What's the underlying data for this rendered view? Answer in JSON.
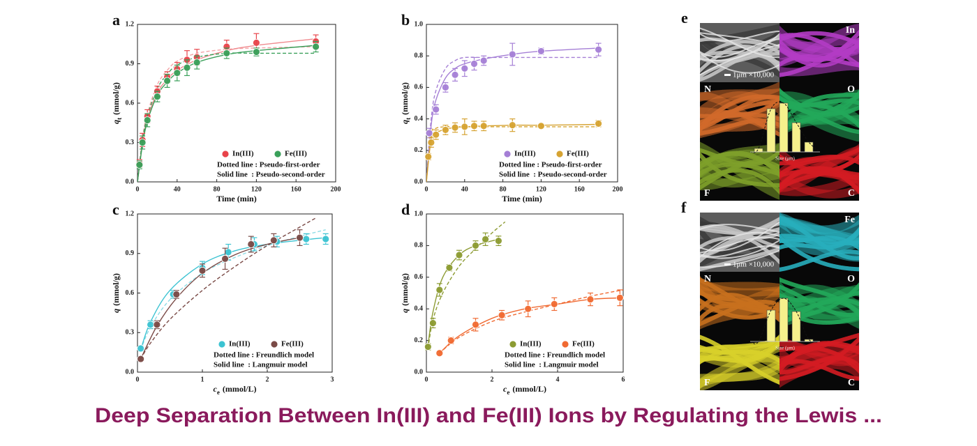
{
  "chart_data": [
    {
      "type": "scatter",
      "panel_label": "a",
      "xlabel": "Time (min)",
      "ylabel": {
        "var": "q",
        "sub": "t",
        "unit": "(mmol/g)"
      },
      "xlim": [
        0,
        200
      ],
      "xticks": [
        0,
        40,
        80,
        120,
        160,
        200
      ],
      "ylim": [
        0,
        1.2
      ],
      "yticks": [
        {
          "value": 0,
          "label": "0.0"
        },
        0.3,
        0.6,
        0.9,
        1.2
      ],
      "legend": "lower right",
      "series": [
        {
          "name": "In(III)",
          "color": "#e8434a",
          "x": [
            2,
            5,
            10,
            20,
            30,
            40,
            50,
            60,
            90,
            120,
            180
          ],
          "values": [
            0.14,
            0.32,
            0.5,
            0.69,
            0.8,
            0.86,
            0.93,
            0.95,
            1.03,
            1.06,
            1.07
          ],
          "errors": [
            0.03,
            0.05,
            0.05,
            0.04,
            0.04,
            0.05,
            0.07,
            0.06,
            0.05,
            0.07,
            0.05
          ]
        },
        {
          "name": "Fe(III)",
          "color": "#3aa05a",
          "x": [
            2,
            5,
            10,
            20,
            30,
            40,
            50,
            60,
            90,
            120,
            180
          ],
          "values": [
            0.13,
            0.3,
            0.47,
            0.65,
            0.77,
            0.83,
            0.87,
            0.91,
            0.98,
            0.99,
            1.03
          ],
          "errors": [
            0.03,
            0.05,
            0.05,
            0.04,
            0.05,
            0.06,
            0.06,
            0.05,
            0.04,
            0.03,
            0.04
          ]
        }
      ],
      "fits": [
        {
          "style": "dashed",
          "color": "#f4a3a6",
          "x": [
            0,
            5,
            10,
            20,
            30,
            40,
            60,
            90,
            120,
            180
          ],
          "values": [
            0,
            0.33,
            0.52,
            0.74,
            0.85,
            0.92,
            0.98,
            1.01,
            1.02,
            1.03
          ]
        },
        {
          "style": "solid",
          "color": "#f08a8e",
          "x": [
            0,
            5,
            10,
            20,
            30,
            40,
            60,
            90,
            120,
            180
          ],
          "values": [
            0,
            0.3,
            0.48,
            0.68,
            0.78,
            0.85,
            0.93,
            1.0,
            1.04,
            1.09
          ]
        },
        {
          "style": "dashed",
          "color": "#3aa05a",
          "x": [
            0,
            5,
            10,
            20,
            30,
            40,
            60,
            90,
            120,
            180
          ],
          "values": [
            0,
            0.31,
            0.5,
            0.71,
            0.82,
            0.89,
            0.95,
            0.98,
            0.98,
            0.98
          ]
        },
        {
          "style": "solid",
          "color": "#3aa05a",
          "x": [
            0,
            5,
            10,
            20,
            30,
            40,
            60,
            90,
            120,
            180
          ],
          "values": [
            0,
            0.28,
            0.46,
            0.66,
            0.76,
            0.83,
            0.91,
            0.97,
            1.0,
            1.04
          ]
        }
      ],
      "notes": [
        "Dotted line : Pseudo-first-order",
        "Solid line  : Pseudo-second-order"
      ]
    },
    {
      "type": "scatter",
      "panel_label": "b",
      "xlabel": "Time (min)",
      "ylabel": {
        "var": "q",
        "sub": "t",
        "unit": "(mmol/g)"
      },
      "xlim": [
        0,
        200
      ],
      "xticks": [
        0,
        40,
        80,
        120,
        160,
        200
      ],
      "ylim": [
        0,
        1.0
      ],
      "yticks": [
        {
          "value": 0,
          "label": "0.0"
        },
        0.2,
        0.4,
        0.6,
        0.8,
        {
          "value": 1.0,
          "label": "1.0"
        }
      ],
      "legend": "lower right",
      "series": [
        {
          "name": "In(III)",
          "color": "#a57fd6",
          "x": [
            3,
            10,
            20,
            30,
            40,
            50,
            60,
            90,
            120,
            180
          ],
          "values": [
            0.31,
            0.46,
            0.6,
            0.68,
            0.72,
            0.75,
            0.77,
            0.81,
            0.83,
            0.84
          ],
          "errors": [
            0.03,
            0.03,
            0.03,
            0.04,
            0.05,
            0.04,
            0.03,
            0.07,
            0.02,
            0.04
          ]
        },
        {
          "name": "Fe(III)",
          "color": "#d6a332",
          "x": [
            2,
            5,
            10,
            20,
            30,
            40,
            50,
            60,
            90,
            120,
            180
          ],
          "values": [
            0.16,
            0.25,
            0.3,
            0.33,
            0.345,
            0.35,
            0.355,
            0.355,
            0.36,
            0.355,
            0.37
          ],
          "errors": [
            0.02,
            0.03,
            0.03,
            0.03,
            0.03,
            0.05,
            0.03,
            0.03,
            0.04,
            0.01,
            0.02
          ]
        }
      ],
      "fits": [
        {
          "style": "dashed",
          "color": "#a57fd6",
          "x": [
            0,
            5,
            10,
            20,
            30,
            40,
            60,
            90,
            120,
            180
          ],
          "values": [
            0,
            0.4,
            0.58,
            0.72,
            0.77,
            0.79,
            0.79,
            0.79,
            0.79,
            0.79
          ]
        },
        {
          "style": "solid",
          "color": "#a57fd6",
          "x": [
            0,
            5,
            10,
            20,
            30,
            40,
            60,
            90,
            120,
            180
          ],
          "values": [
            0,
            0.36,
            0.52,
            0.66,
            0.72,
            0.75,
            0.78,
            0.81,
            0.83,
            0.85
          ]
        },
        {
          "style": "dashed",
          "color": "#d6a332",
          "x": [
            0,
            5,
            10,
            20,
            30,
            40,
            60,
            90,
            120,
            180
          ],
          "values": [
            0,
            0.3,
            0.34,
            0.35,
            0.35,
            0.35,
            0.35,
            0.35,
            0.35,
            0.35
          ]
        },
        {
          "style": "solid",
          "color": "#d6a332",
          "x": [
            0,
            5,
            10,
            20,
            30,
            40,
            60,
            90,
            120,
            180
          ],
          "values": [
            0,
            0.27,
            0.31,
            0.335,
            0.345,
            0.35,
            0.355,
            0.36,
            0.36,
            0.365
          ]
        }
      ],
      "notes": [
        "Dotted line : Pseudo-first-order",
        "Solid line  : Pseudo-second-order"
      ]
    },
    {
      "type": "scatter",
      "panel_label": "c",
      "xlabel": {
        "var": "c",
        "sub": "e",
        "unit": "(mmol/L)"
      },
      "ylabel": {
        "var": "q",
        "unit": "(mmol/g)"
      },
      "xlim": [
        0,
        3
      ],
      "xticks": [
        0,
        1,
        2,
        3
      ],
      "ylim": [
        0,
        1.2
      ],
      "yticks": [
        {
          "value": 0,
          "label": "0.0"
        },
        0.3,
        0.6,
        0.9,
        1.2
      ],
      "legend": "lower right",
      "series": [
        {
          "name": "In(III)",
          "color": "#3cc3d2",
          "x": [
            0.05,
            0.2,
            0.55,
            1.0,
            1.4,
            1.8,
            2.15,
            2.6,
            2.9
          ],
          "values": [
            0.18,
            0.36,
            0.59,
            0.79,
            0.91,
            0.97,
            0.99,
            1.01,
            1.01
          ],
          "errors": [
            0.02,
            0.03,
            0.03,
            0.05,
            0.06,
            0.05,
            0.04,
            0.04,
            0.04
          ]
        },
        {
          "name": "Fe(III)",
          "color": "#7a4a46",
          "x": [
            0.05,
            0.3,
            0.6,
            1.0,
            1.35,
            1.75,
            2.1,
            2.5
          ],
          "values": [
            0.1,
            0.36,
            0.59,
            0.77,
            0.86,
            0.97,
            1.0,
            1.02
          ],
          "errors": [
            0.01,
            0.03,
            0.03,
            0.05,
            0.08,
            0.06,
            0.05,
            0.06
          ]
        }
      ],
      "fits": [
        {
          "style": "dashed",
          "color": "#8fdde6",
          "x": [
            0.05,
            0.2,
            0.5,
            1.0,
            1.5,
            2.0,
            2.5,
            2.9
          ],
          "values": [
            0.17,
            0.34,
            0.55,
            0.75,
            0.87,
            0.96,
            1.03,
            1.08
          ]
        },
        {
          "style": "solid",
          "color": "#3cc3d2",
          "x": [
            0.05,
            0.2,
            0.5,
            1.0,
            1.5,
            2.0,
            2.5,
            2.9
          ],
          "values": [
            0.17,
            0.38,
            0.62,
            0.82,
            0.92,
            0.97,
            1.0,
            1.02
          ]
        },
        {
          "style": "dashed",
          "color": "#7a4a46",
          "x": [
            0.05,
            0.2,
            0.5,
            1.0,
            1.5,
            2.0,
            2.5,
            2.75
          ],
          "values": [
            0.1,
            0.22,
            0.4,
            0.62,
            0.8,
            0.96,
            1.1,
            1.17
          ]
        },
        {
          "style": "solid",
          "color": "#7a4a46",
          "x": [
            0.05,
            0.3,
            0.6,
            1.0,
            1.5,
            2.0,
            2.5
          ],
          "values": [
            0.1,
            0.35,
            0.56,
            0.75,
            0.89,
            0.97,
            1.02
          ]
        }
      ],
      "notes": [
        "Dotted line : Freundlich model",
        "Solid line  : Langmuir model"
      ]
    },
    {
      "type": "scatter",
      "panel_label": "d",
      "xlabel": {
        "var": "c",
        "sub": "e",
        "unit": "(mmol/L)"
      },
      "ylabel": {
        "var": "q",
        "unit": "(mmol/g)"
      },
      "xlim": [
        0,
        6
      ],
      "xticks": [
        0,
        2,
        4,
        6
      ],
      "ylim": [
        0,
        1.0
      ],
      "yticks": [
        {
          "value": 0,
          "label": "0.0"
        },
        0.2,
        0.4,
        0.6,
        0.8,
        {
          "value": 1.0,
          "label": "1.0"
        }
      ],
      "legend": "lower right",
      "series": [
        {
          "name": "In(III)",
          "color": "#8c9b32",
          "x": [
            0.05,
            0.2,
            0.4,
            0.7,
            1.0,
            1.5,
            1.8,
            2.2
          ],
          "values": [
            0.16,
            0.31,
            0.52,
            0.66,
            0.74,
            0.8,
            0.84,
            0.83
          ],
          "errors": [
            0.02,
            0.03,
            0.04,
            0.02,
            0.03,
            0.03,
            0.04,
            0.03
          ]
        },
        {
          "name": "Fe(III)",
          "color": "#f06a32",
          "x": [
            0.4,
            0.75,
            1.5,
            2.3,
            3.1,
            3.9,
            5.0,
            5.9
          ],
          "values": [
            0.12,
            0.2,
            0.3,
            0.36,
            0.4,
            0.43,
            0.46,
            0.47
          ],
          "errors": [
            0.01,
            0.02,
            0.04,
            0.03,
            0.05,
            0.04,
            0.04,
            0.05
          ]
        }
      ],
      "fits": [
        {
          "style": "dashed",
          "color": "#8c9b32",
          "x": [
            0.05,
            0.2,
            0.5,
            1.0,
            1.5,
            2.0,
            2.4
          ],
          "values": [
            0.15,
            0.33,
            0.5,
            0.67,
            0.78,
            0.88,
            0.95
          ]
        },
        {
          "style": "solid",
          "color": "#8c9b32",
          "x": [
            0.05,
            0.2,
            0.5,
            1.0,
            1.5,
            2.2
          ],
          "values": [
            0.17,
            0.38,
            0.6,
            0.74,
            0.8,
            0.84
          ]
        },
        {
          "style": "dashed",
          "color": "#f06a32",
          "x": [
            0.4,
            1,
            2,
            3,
            4,
            5,
            6
          ],
          "values": [
            0.12,
            0.22,
            0.32,
            0.38,
            0.43,
            0.48,
            0.52
          ]
        },
        {
          "style": "solid",
          "color": "#f06a32",
          "x": [
            0.4,
            1,
            2,
            3,
            4,
            5,
            6
          ],
          "values": [
            0.12,
            0.23,
            0.34,
            0.4,
            0.43,
            0.46,
            0.47
          ]
        }
      ],
      "notes": [
        "Dotted line : Freundlich model",
        "Solid line  : Langmuir model"
      ]
    }
  ],
  "micrographs": [
    {
      "panel_label": "e",
      "scale": "1μm ×10,000",
      "cells": [
        {
          "label": "In",
          "color": "#b23cc4"
        },
        {
          "label": "N",
          "color": "#d0692a"
        },
        {
          "label": "O",
          "color": "#22a85a"
        },
        {
          "label": "F",
          "color": "#7ea02a"
        },
        {
          "label": "C",
          "color": "#d41c22"
        }
      ],
      "inset": {
        "xlabel": "Size (μm)",
        "values": [
          5,
          62,
          70,
          42,
          14
        ]
      }
    },
    {
      "panel_label": "f",
      "scale": "1μm ×10,000",
      "cells": [
        {
          "label": "Fe",
          "color": "#28aebc"
        },
        {
          "label": "N",
          "color": "#c8701e"
        },
        {
          "label": "O",
          "color": "#22a85a"
        },
        {
          "label": "F",
          "color": "#d8d02a"
        },
        {
          "label": "C",
          "color": "#d41c22"
        }
      ],
      "inset": {
        "xlabel": "Size (μm)",
        "values": [
          0,
          45,
          62,
          43,
          3
        ]
      }
    }
  ],
  "heading": "Deep Separation Between In(III) and Fe(III) Ions by Regulating the Lewis ..."
}
